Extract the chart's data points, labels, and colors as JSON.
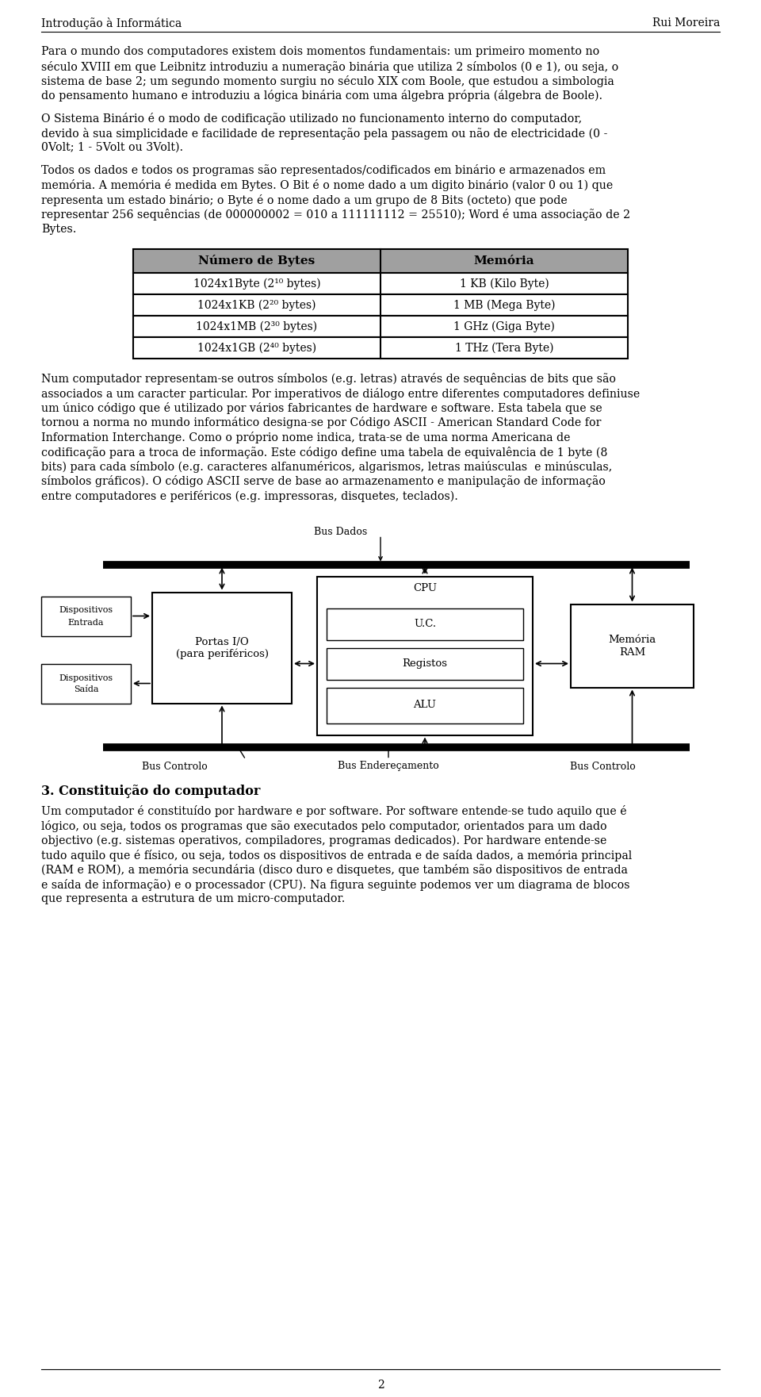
{
  "header_left": "Introdução à Informática",
  "header_right": "Rui Moreira",
  "footer_page": "2",
  "bg_color": "#ffffff",
  "para1_lines": [
    "Para o mundo dos computadores existem dois momentos fundamentais: um primeiro momento no",
    "século XVIII em que Leibnitz introduziu a numeração binária que utiliza 2 símbolos (0 e 1), ou seja, o",
    "sistema de base 2; um segundo momento surgiu no século XIX com Boole, que estudou a simbologia",
    "do pensamento humano e introduziu a lógica binária com uma álgebra própria (álgebra de Boole)."
  ],
  "para2_lines": [
    "O Sistema Binário é o modo de codificação utilizado no funcionamento interno do computador,",
    "devido à sua simplicidade e facilidade de representação pela passagem ou não de electricidade (0 -",
    "0Volt; 1 - 5Volt ou 3Volt)."
  ],
  "para3_lines": [
    "Todos os dados e todos os programas são representados/codificados em binário e armazenados em",
    "memória. A memória é medida em Bytes. O Bit é o nome dado a um digito binário (valor 0 ou 1) que",
    "representa um estado binário; o Byte é o nome dado a um grupo de 8 Bits (octeto) que pode",
    "representar 256 sequências (de 000000002 = 010 a 111111112 = 25510); Word é uma associação de 2",
    "Bytes."
  ],
  "para4_lines": [
    "Num computador representam-se outros símbolos (e.g. letras) através de sequências de bits que são",
    "associados a um caracter particular. Por imperativos de diálogo entre diferentes computadores definiuse",
    "um único código que é utilizado por vários fabricantes de hardware e software. Esta tabela que se",
    "tornou a norma no mundo informático designa-se por Código ASCII - American Standard Code for",
    "Information Interchange. Como o próprio nome indica, trata-se de uma norma Americana de",
    "codificação para a troca de informação. Este código define uma tabela de equivalência de 1 byte (8",
    "bits) para cada símbolo (e.g. caracteres alfanuméricos, algarismos, letras maiúsculas  e minúsculas,",
    "símbolos gráficos). O código ASCII serve de base ao armazenamento e manipulação de informação",
    "entre computadores e periféricos (e.g. impressoras, disquetes, teclados)."
  ],
  "para5_lines": [
    "Um computador é constituído por hardware e por software. Por software entende-se tudo aquilo que é",
    "lógico, ou seja, todos os programas que são executados pelo computador, orientados para um dado",
    "objectivo (e.g. sistemas operativos, compiladores, programas dedicados). Por hardware entende-se",
    "tudo aquilo que é físico, ou seja, todos os dispositivos de entrada e de saída dados, a memória principal",
    "(RAM e ROM), a memória secundária (disco duro e disquetes, que também são dispositivos de entrada",
    "e saída de informação) e o processador (CPU). Na figura seguinte podemos ver um diagrama de blocos",
    "que representa a estrutura de um micro-computador."
  ],
  "table_header_col1": "Número de Bytes",
  "table_header_col2": "Memória",
  "table_rows_col1": [
    "1024x1Byte (2¹⁰ bytes)",
    "1024x1KB (2²⁰ bytes)",
    "1024x1MB (2³⁰ bytes)",
    "1024x1GB (2⁴⁰ bytes)"
  ],
  "table_rows_col2": [
    "1 KB (Kilo Byte)",
    "1 MB (Mega Byte)",
    "1 GHz (Giga Byte)",
    "1 THz (Tera Byte)"
  ],
  "section3_title": "3. Constituição do computador",
  "table_header_bg": "#a0a0a0"
}
